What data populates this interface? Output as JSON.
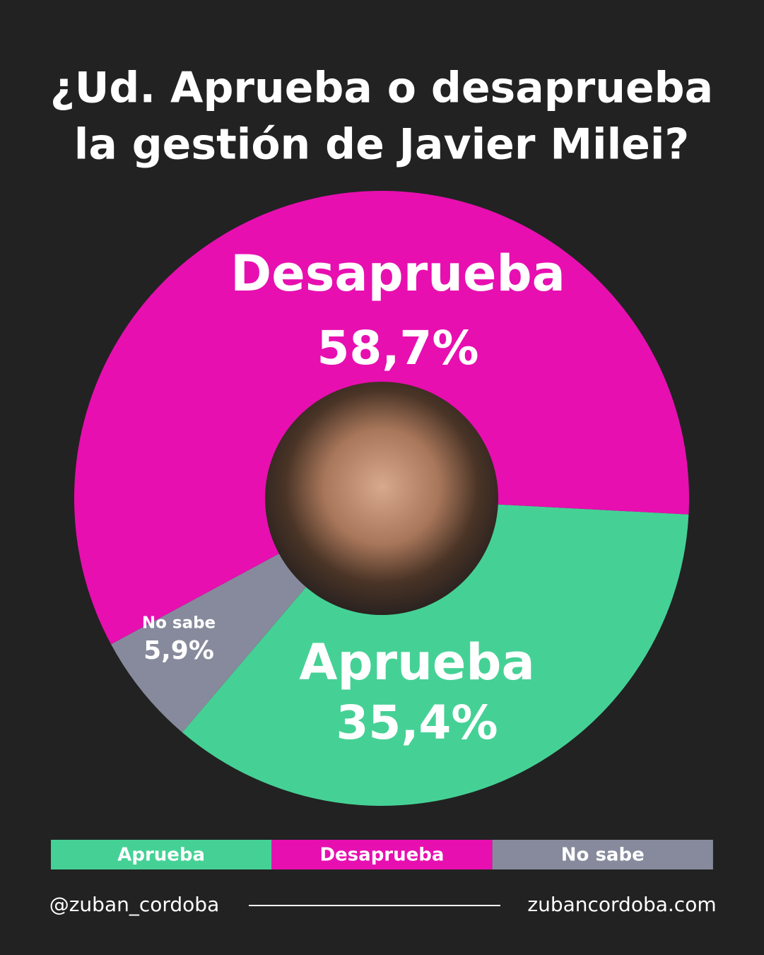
{
  "chart_data": {
    "type": "donut",
    "title": [
      "¿Ud. Aprueba o desaprueba",
      "la gestión de Javier Milei?"
    ],
    "categories": [
      "Aprueba",
      "No sabe",
      "Desaprueba"
    ],
    "values": [
      35.4,
      5.9,
      58.7
    ],
    "value_labels": [
      "35,4%",
      "5,9%",
      "58,7%"
    ],
    "colors": [
      "#45d195",
      "#868a9c",
      "#e70fb0"
    ],
    "legend": [
      "Aprueba",
      "Desaprueba",
      "No sabe"
    ],
    "legend_colors": [
      "#45d195",
      "#e70fb0",
      "#868a9c"
    ]
  },
  "footer": {
    "left": "@zuban_cordoba",
    "right": "zubancordoba.com"
  }
}
